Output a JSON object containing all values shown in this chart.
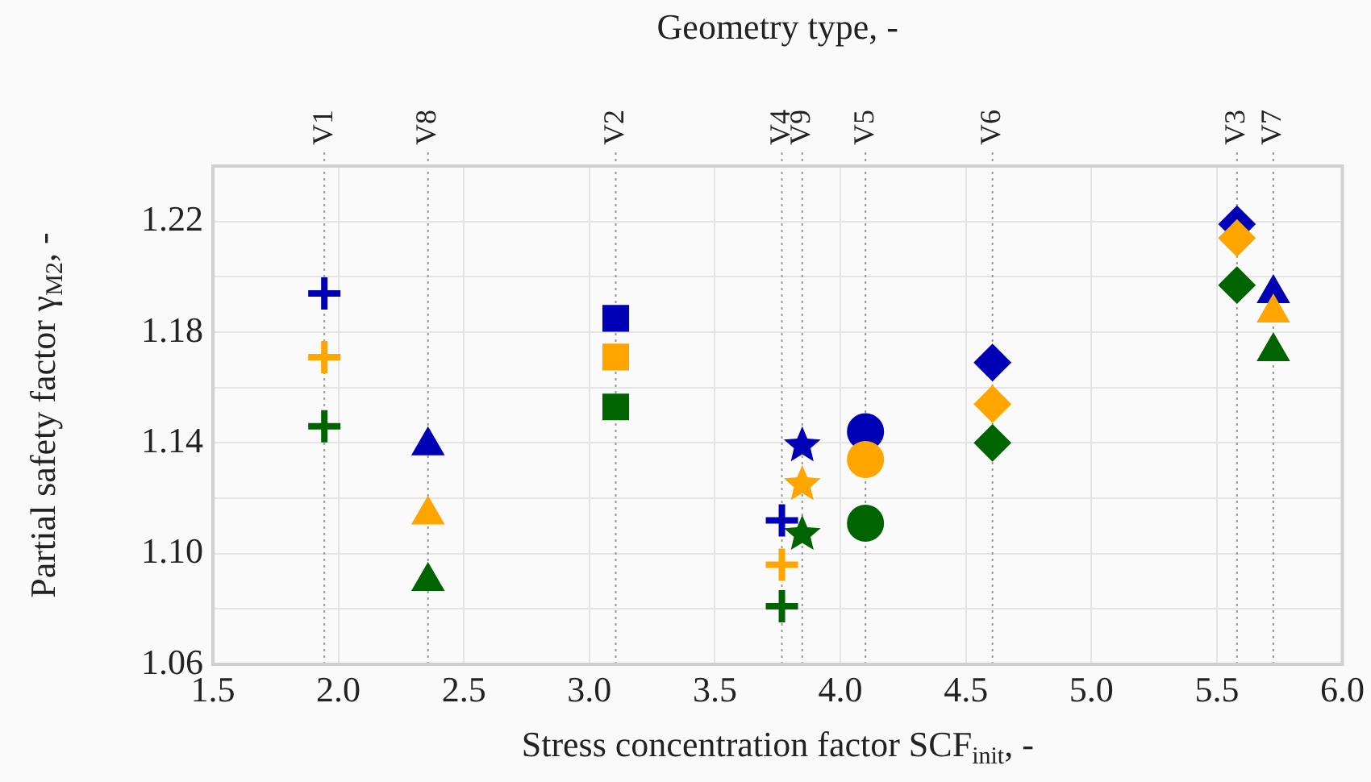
{
  "chart_data": {
    "type": "scatter",
    "xlabel": "Stress concentration factor SCF$_{init}$, -",
    "ylabel": "Partial safety factor γ$_{M2}$, -",
    "x2label": "Geometry type, -",
    "xlim": [
      1.5,
      6.0
    ],
    "xticks": [
      1.5,
      {
        "value": 2,
        "label": "2.0"
      },
      2.5,
      {
        "value": 3,
        "label": "3.0"
      },
      3.5,
      {
        "value": 4,
        "label": "4.0"
      },
      4.5,
      {
        "value": 5,
        "label": "5.0"
      },
      5.5,
      {
        "value": 6,
        "label": "6.0"
      }
    ],
    "ylim": [
      1.06,
      1.24
    ],
    "yticks": [
      1.06,
      {
        "value": 1.08,
        "label": null
      },
      {
        "value": 1.1,
        "label": "1.10"
      },
      {
        "value": 1.12,
        "label": null
      },
      1.14,
      {
        "value": 1.16,
        "label": null
      },
      1.18,
      {
        "value": 1.2,
        "label": null
      },
      1.22
    ],
    "grid": true,
    "series": [
      {
        "marker": "cross",
        "x": [
          1.944,
          1.944,
          1.944
        ],
        "values": [
          1.194,
          1.171,
          1.146
        ],
        "colors": [
          "#0000b4",
          "#ffa500",
          "#006400"
        ]
      },
      {
        "marker": "triangle",
        "x": [
          2.357,
          2.357,
          2.357
        ],
        "values": [
          1.139,
          1.114,
          1.09
        ],
        "colors": [
          "#0000b4",
          "#ffa500",
          "#006400"
        ]
      },
      {
        "marker": "square",
        "x": [
          3.105,
          3.105,
          3.105
        ],
        "values": [
          1.185,
          1.171,
          1.153
        ],
        "colors": [
          "#0000b4",
          "#ffa500",
          "#006400"
        ]
      },
      {
        "marker": "cross",
        "x": [
          3.767,
          3.767,
          3.767
        ],
        "values": [
          1.112,
          1.096,
          1.081
        ],
        "colors": [
          "#0000b4",
          "#ffa500",
          "#006400"
        ]
      },
      {
        "marker": "star",
        "x": [
          3.848,
          3.848,
          3.848
        ],
        "values": [
          1.139,
          1.125,
          1.107
        ],
        "colors": [
          "#0000b4",
          "#ffa500",
          "#006400"
        ]
      },
      {
        "marker": "circle",
        "x": [
          4.1,
          4.1,
          4.1
        ],
        "values": [
          1.144,
          1.134,
          1.111
        ],
        "colors": [
          "#0000b4",
          "#ffa500",
          "#006400"
        ]
      },
      {
        "marker": "diamond",
        "x": [
          4.606,
          4.606,
          4.606
        ],
        "values": [
          1.169,
          1.154,
          1.14
        ],
        "colors": [
          "#0000b4",
          "#ffa500",
          "#006400"
        ]
      },
      {
        "marker": "diamond",
        "x": [
          5.58,
          5.58,
          5.58
        ],
        "values": [
          1.219,
          1.214,
          1.197
        ],
        "colors": [
          "#0000b4",
          "#ffa500",
          "#006400"
        ]
      },
      {
        "marker": "triangle",
        "x": [
          5.725,
          5.725,
          5.725
        ],
        "values": [
          1.194,
          1.187,
          1.173
        ],
        "colors": [
          "#0000b4",
          "#ffa500",
          "#006400"
        ]
      }
    ],
    "ref_lines": [
      {
        "axis": "x",
        "value": 1.944,
        "label": "V1",
        "color": "#999999",
        "line_style": "dotted"
      },
      {
        "axis": "x",
        "value": 2.357,
        "label": "V8",
        "color": "#999999",
        "line_style": "dotted"
      },
      {
        "axis": "x",
        "value": 3.105,
        "label": "V2",
        "color": "#999999",
        "line_style": "dotted"
      },
      {
        "axis": "x",
        "value": 3.767,
        "label": "V4",
        "color": "#999999",
        "line_style": "dotted"
      },
      {
        "axis": "x",
        "value": 3.848,
        "label": "V9",
        "color": "#999999",
        "line_style": "dotted"
      },
      {
        "axis": "x",
        "value": 4.1,
        "label": "V5",
        "color": "#999999",
        "line_style": "dotted"
      },
      {
        "axis": "x",
        "value": 4.606,
        "label": "V6",
        "color": "#999999",
        "line_style": "dotted"
      },
      {
        "axis": "x",
        "value": 5.58,
        "label": "V3",
        "color": "#999999",
        "line_style": "dotted"
      },
      {
        "axis": "x",
        "value": 5.725,
        "label": "V7",
        "color": "#999999",
        "line_style": "dotted"
      }
    ]
  }
}
